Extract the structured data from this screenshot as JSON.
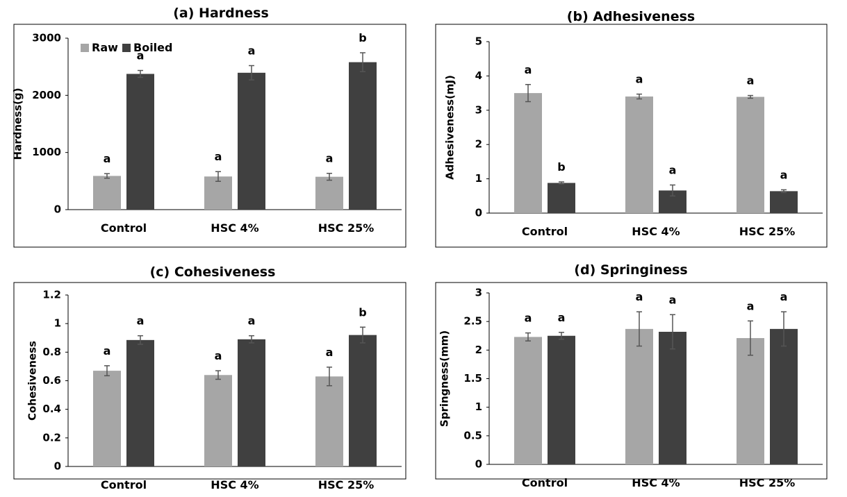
{
  "legend": {
    "raw": "Raw",
    "boiled": "Boiled"
  },
  "colors": {
    "raw": "#a6a6a6",
    "boiled": "#404040",
    "error": "#555555",
    "axis": "#000000"
  },
  "chart_data": [
    {
      "panel": "a",
      "type": "bar",
      "title": "(a) Hardness",
      "ylabel": "Hardness(g)",
      "xlabel": "",
      "categories": [
        "Control",
        "HSC 4%",
        "HSC 25%"
      ],
      "ylim": [
        0,
        3000
      ],
      "yticks": [
        0,
        1000,
        2000,
        3000
      ],
      "ytick_labels": [
        "0",
        "1000",
        "2000",
        "3000"
      ],
      "legend": "top-left",
      "series": [
        {
          "name": "Raw",
          "values": [
            590,
            580,
            575
          ],
          "errors": [
            40,
            85,
            60
          ],
          "labels": [
            "a",
            "a",
            "a"
          ]
        },
        {
          "name": "Boiled",
          "values": [
            2375,
            2395,
            2580
          ],
          "errors": [
            60,
            125,
            165
          ],
          "labels": [
            "a",
            "a",
            "b"
          ]
        }
      ]
    },
    {
      "panel": "b",
      "type": "bar",
      "title": "(b) Adhesiveness",
      "ylabel": "Adhesiveness(mJ)",
      "xlabel": "",
      "categories": [
        "Control",
        "HSC 4%",
        "HSC 25%"
      ],
      "ylim": [
        0,
        5
      ],
      "yticks": [
        0,
        1,
        2,
        3,
        4,
        5
      ],
      "ytick_labels": [
        "0",
        "1",
        "2",
        "3",
        "4",
        "5"
      ],
      "series": [
        {
          "name": "Raw",
          "values": [
            3.5,
            3.4,
            3.39
          ],
          "errors": [
            0.25,
            0.07,
            0.04
          ],
          "labels": [
            "a",
            "a",
            "a"
          ]
        },
        {
          "name": "Boiled",
          "values": [
            0.88,
            0.66,
            0.64
          ],
          "errors": [
            0.03,
            0.16,
            0.04
          ],
          "labels": [
            "b",
            "a",
            "a"
          ]
        }
      ]
    },
    {
      "panel": "c",
      "type": "bar",
      "title": "(c) Cohesiveness",
      "ylabel": "Cohesiveness",
      "xlabel": "",
      "categories": [
        "Control",
        "HSC 4%",
        "HSC 25%"
      ],
      "ylim": [
        0,
        1.2
      ],
      "yticks": [
        0,
        0.2,
        0.4,
        0.6,
        0.8,
        1,
        1.2
      ],
      "ytick_labels": [
        "0",
        "0.2",
        "0.4",
        "0.6",
        "0.8",
        "1",
        "1.2"
      ],
      "series": [
        {
          "name": "Raw",
          "values": [
            0.67,
            0.64,
            0.63
          ],
          "errors": [
            0.035,
            0.03,
            0.065
          ],
          "labels": [
            "a",
            "a",
            "a"
          ]
        },
        {
          "name": "Boiled",
          "values": [
            0.885,
            0.89,
            0.92
          ],
          "errors": [
            0.03,
            0.025,
            0.055
          ],
          "labels": [
            "a",
            "a",
            "b"
          ]
        }
      ]
    },
    {
      "panel": "d",
      "type": "bar",
      "title": "(d) Springiness",
      "ylabel": "Springness(mm)",
      "xlabel": "",
      "categories": [
        "Control",
        "HSC 4%",
        "HSC 25%"
      ],
      "ylim": [
        0,
        3
      ],
      "yticks": [
        0,
        0.5,
        1,
        1.5,
        2,
        2.5,
        3
      ],
      "ytick_labels": [
        "0",
        "0.5",
        "1",
        "1.5",
        "2",
        "2.5",
        "3"
      ],
      "series": [
        {
          "name": "Raw",
          "values": [
            2.23,
            2.37,
            2.21
          ],
          "errors": [
            0.07,
            0.3,
            0.3
          ],
          "labels": [
            "a",
            "a",
            "a"
          ]
        },
        {
          "name": "Boiled",
          "values": [
            2.25,
            2.32,
            2.37
          ],
          "errors": [
            0.06,
            0.3,
            0.3
          ],
          "labels": [
            "a",
            "a",
            "a"
          ]
        }
      ]
    }
  ]
}
